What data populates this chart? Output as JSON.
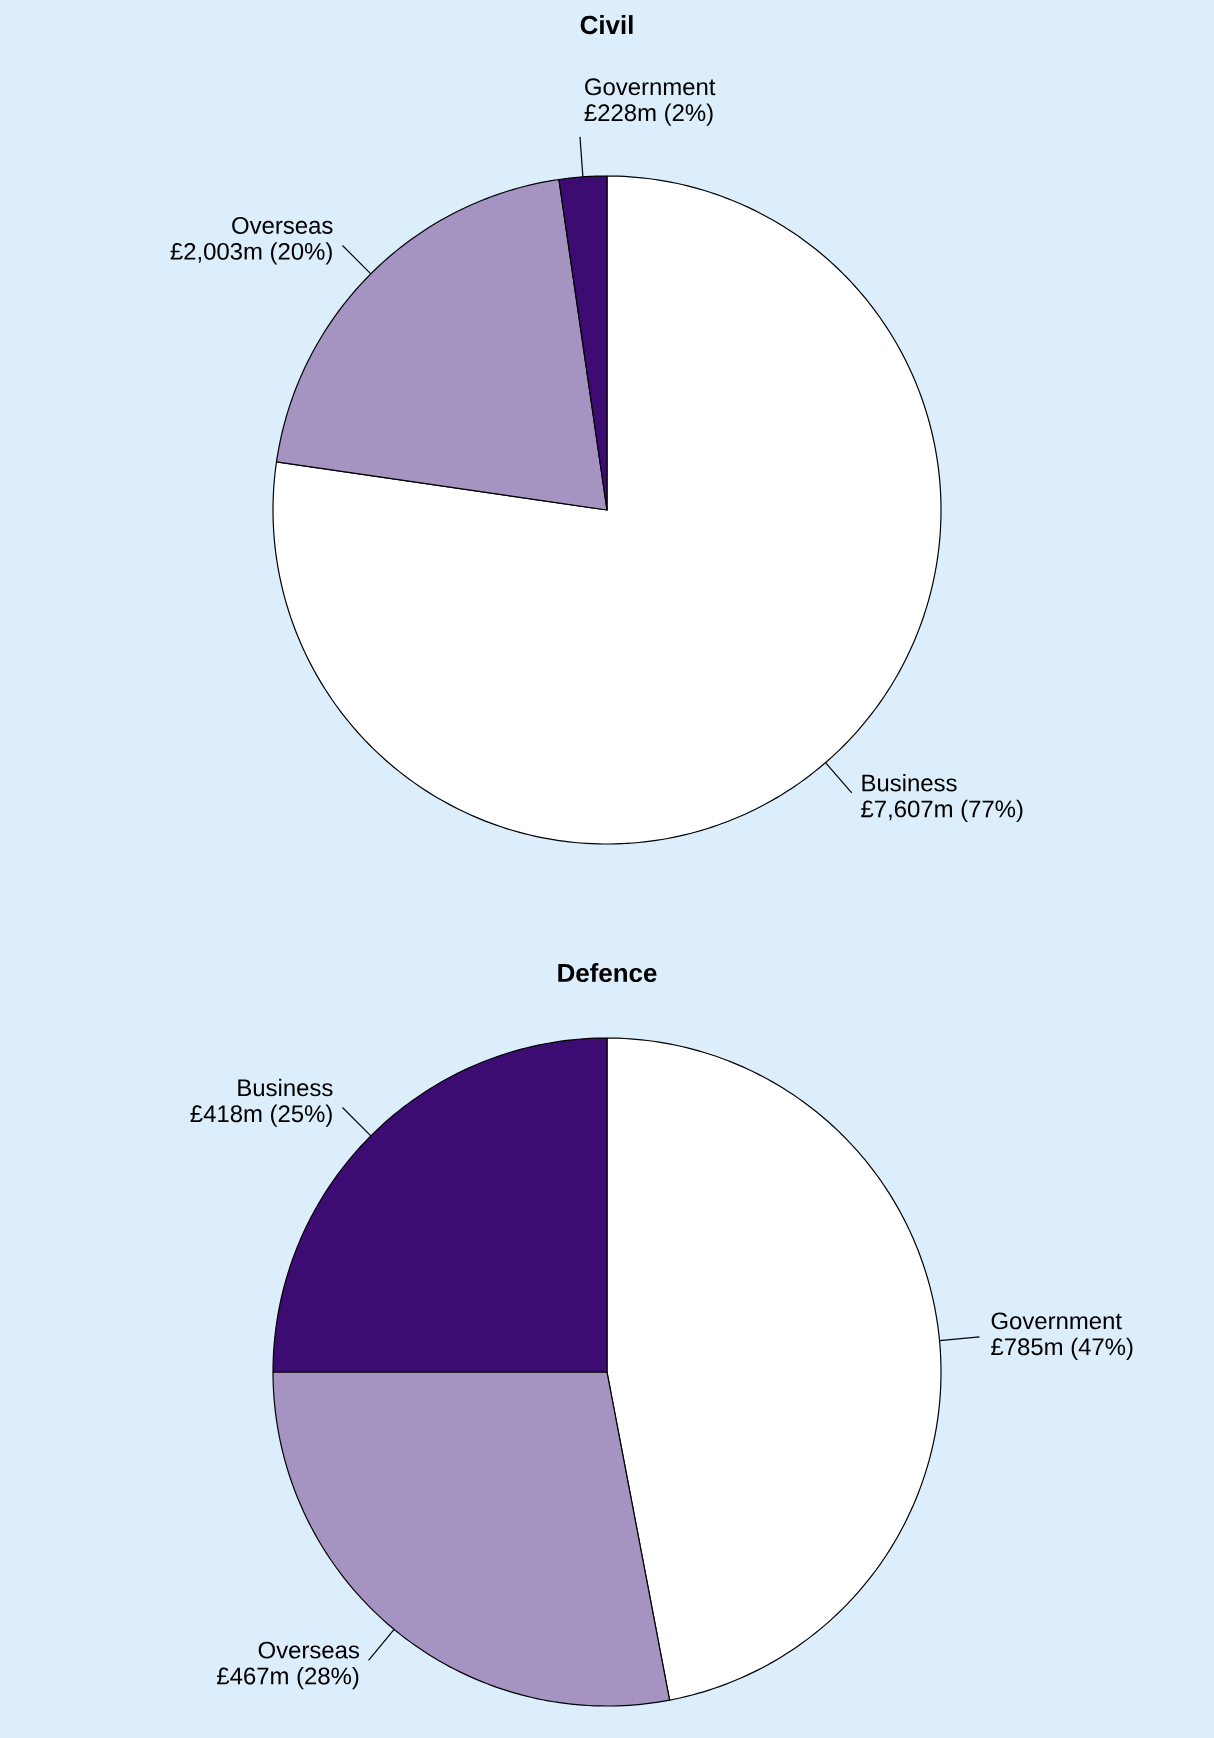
{
  "chart_data": [
    {
      "type": "pie",
      "title": "Civil",
      "categories": [
        "Business",
        "Overseas",
        "Government"
      ],
      "values": [
        77.3,
        20.4,
        2.3
      ],
      "colors": [
        "#ffffff",
        "#a593c2",
        "#3d0c73"
      ],
      "value_labels": [
        "£7,607m (77%)",
        "£2,003m (20%)",
        "£228m (2%)"
      ]
    },
    {
      "type": "pie",
      "title": "Defence",
      "categories": [
        "Government",
        "Overseas",
        "Business"
      ],
      "values": [
        47,
        28,
        25
      ],
      "colors": [
        "#ffffff",
        "#a593c2",
        "#3d0c73"
      ],
      "value_labels": [
        "£785m (47%)",
        "£467m (28%)",
        "£418m (25%)"
      ]
    }
  ]
}
